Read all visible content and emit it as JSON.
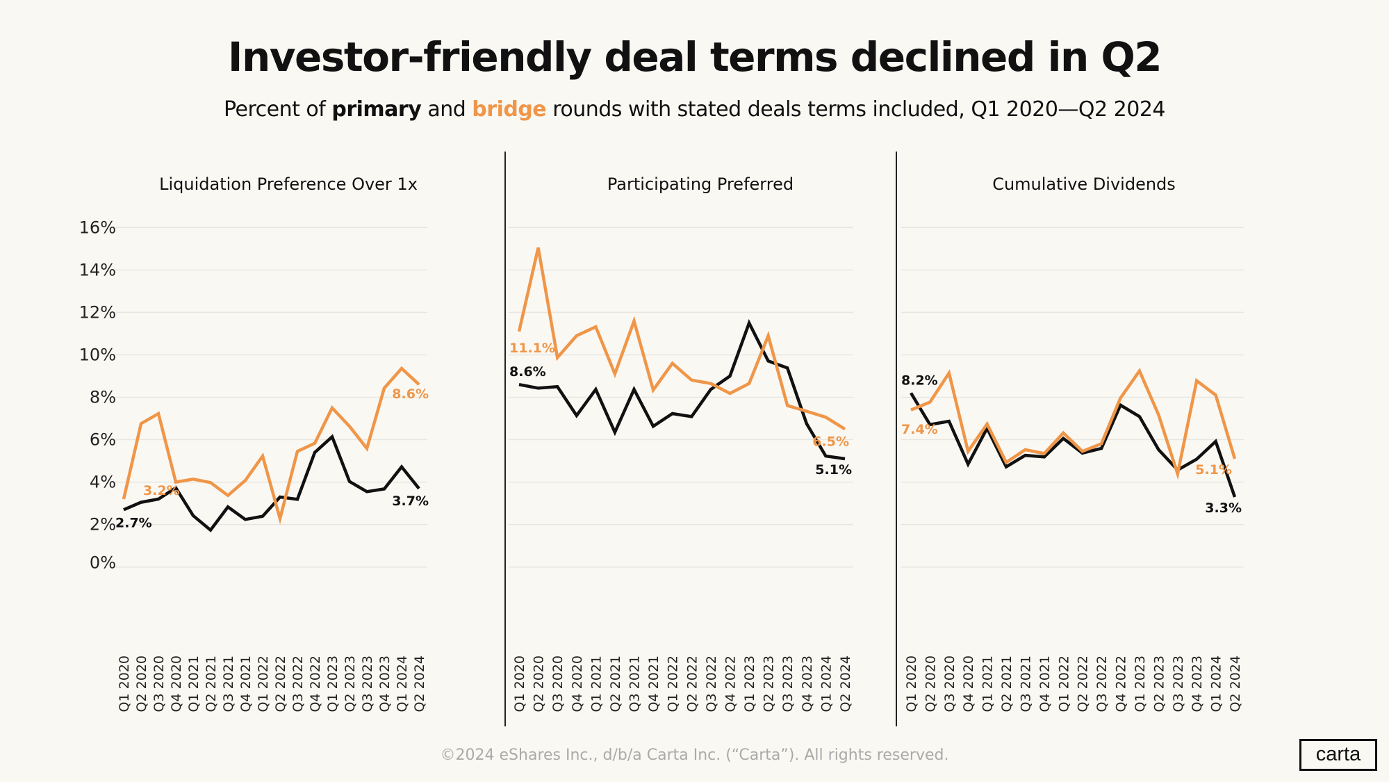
{
  "title": "Investor-friendly deal terms declined in Q2",
  "subtitle": {
    "pre": "Percent of ",
    "primary": "primary",
    "mid": " and ",
    "bridge": "bridge",
    "post": " rounds with stated deals terms included, Q1 2020—Q2 2024"
  },
  "footer": "©2024 eShares Inc., d/b/a Carta Inc. (“Carta”). All rights reserved.",
  "logo": "carta",
  "colors": {
    "primary": "#111111",
    "bridge": "#ef9649",
    "grid": "#e8e6e1",
    "divider": "#222222"
  },
  "chart_data": [
    {
      "type": "line",
      "title": "Liquidation Preference Over 1x",
      "categories": [
        "Q1 2020",
        "Q2 2020",
        "Q3 2020",
        "Q4 2020",
        "Q1 2021",
        "Q2 2021",
        "Q3 2021",
        "Q4 2021",
        "Q1 2022",
        "Q2 2022",
        "Q3 2022",
        "Q4 2022",
        "Q1 2023",
        "Q2 2023",
        "Q3 2023",
        "Q4 2023",
        "Q1 2024",
        "Q2 2024"
      ],
      "yticks": [
        "0%",
        "2%",
        "4%",
        "6%",
        "8%",
        "10%",
        "12%",
        "14%",
        "16%"
      ],
      "ylim": [
        0,
        16
      ],
      "grid": true,
      "series": [
        {
          "name": "primary",
          "values": [
            2.7,
            3.05,
            3.2,
            3.73,
            2.42,
            1.74,
            2.83,
            2.24,
            2.39,
            3.3,
            3.19,
            5.4,
            6.14,
            4.03,
            3.55,
            3.68,
            4.72,
            3.7
          ],
          "labels": {
            "first": "2.7%",
            "last": "3.7%"
          }
        },
        {
          "name": "bridge",
          "values": [
            3.2,
            6.76,
            7.23,
            4.0,
            4.14,
            3.98,
            3.37,
            4.08,
            5.23,
            2.28,
            5.45,
            5.83,
            7.5,
            6.63,
            5.59,
            8.43,
            9.36,
            8.6
          ],
          "labels": {
            "first": "3.2%",
            "last": "8.6%"
          }
        }
      ]
    },
    {
      "type": "line",
      "title": "Participating Preferred",
      "categories": [
        "Q1 2020",
        "Q2 2020",
        "Q3 2020",
        "Q4 2020",
        "Q1 2021",
        "Q2 2021",
        "Q3 2021",
        "Q4 2021",
        "Q1 2022",
        "Q2 2022",
        "Q3 2022",
        "Q4 2022",
        "Q1 2023",
        "Q2 2023",
        "Q3 2023",
        "Q4 2023",
        "Q1 2024",
        "Q2 2024"
      ],
      "ylim": [
        0,
        16
      ],
      "grid": true,
      "series": [
        {
          "name": "primary",
          "values": [
            8.6,
            8.43,
            8.5,
            7.14,
            8.37,
            6.35,
            8.37,
            6.63,
            7.23,
            7.09,
            8.37,
            9.0,
            11.5,
            9.71,
            9.38,
            6.76,
            5.23,
            5.1
          ],
          "labels": {
            "first": "8.6%",
            "last": "5.1%"
          }
        },
        {
          "name": "bridge",
          "values": [
            11.1,
            15.05,
            9.87,
            10.9,
            11.32,
            9.1,
            11.59,
            8.34,
            9.6,
            8.81,
            8.65,
            8.18,
            8.65,
            10.9,
            7.61,
            7.34,
            7.06,
            6.5
          ],
          "labels": {
            "first": "11.1%",
            "last": "6.5%"
          }
        }
      ]
    },
    {
      "type": "line",
      "title": "Cumulative Dividends",
      "categories": [
        "Q1 2020",
        "Q2 2020",
        "Q3 2020",
        "Q4 2020",
        "Q1 2021",
        "Q2 2021",
        "Q3 2021",
        "Q4 2021",
        "Q1 2022",
        "Q2 2022",
        "Q3 2022",
        "Q4 2022",
        "Q1 2023",
        "Q2 2023",
        "Q3 2023",
        "Q4 2023",
        "Q1 2024",
        "Q2 2024"
      ],
      "ylim": [
        0,
        16
      ],
      "grid": true,
      "series": [
        {
          "name": "primary",
          "values": [
            8.2,
            6.71,
            6.87,
            4.85,
            6.54,
            4.72,
            5.26,
            5.19,
            6.06,
            5.37,
            5.59,
            7.63,
            7.09,
            5.53,
            4.57,
            5.08,
            5.92,
            3.3
          ],
          "labels": {
            "first": "8.2%",
            "last": "3.3%"
          }
        },
        {
          "name": "bridge",
          "values": [
            7.4,
            7.77,
            9.14,
            5.45,
            6.74,
            4.93,
            5.53,
            5.35,
            6.32,
            5.45,
            5.81,
            7.96,
            9.24,
            7.17,
            4.39,
            8.78,
            8.1,
            5.1
          ],
          "labels": {
            "first": "7.4%",
            "last": "5.1%"
          }
        }
      ]
    }
  ]
}
